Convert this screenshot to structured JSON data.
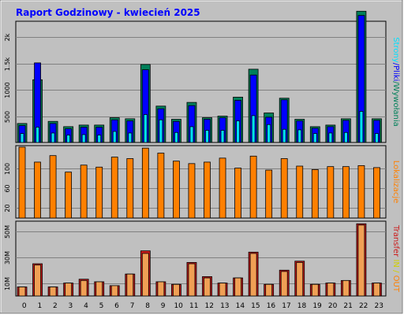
{
  "title": "Raport Godzinowy -  kwiecień 2025",
  "colors": {
    "background": "#c0c0c0",
    "title": "#0000ff",
    "hits": "#00805a",
    "files": "#0000ff",
    "pages": "#00e0ff",
    "visits": "#ff8000",
    "kbytes_out": "#cc1a1a",
    "kbytes_in": "#f0a055",
    "legend_out": "#d0d000"
  },
  "chart_data": [
    {
      "type": "bar",
      "panel": "hits-files-pages",
      "categories": [
        "0",
        "1",
        "2",
        "3",
        "4",
        "5",
        "6",
        "7",
        "8",
        "9",
        "10",
        "11",
        "12",
        "13",
        "14",
        "15",
        "16",
        "17",
        "18",
        "19",
        "20",
        "21",
        "22",
        "23"
      ],
      "ylim": [
        0,
        2300
      ],
      "yticks": [
        500,
        1000,
        1500,
        2000
      ],
      "ytick_labels": [
        "500",
        "1000",
        "1.5k",
        "2k"
      ],
      "right_label": [
        "Strony",
        "/",
        "Pliki",
        "/",
        "Wywołania"
      ],
      "series": [
        {
          "name": "Wywołania",
          "values": [
            360,
            1190,
            400,
            300,
            330,
            330,
            470,
            450,
            1480,
            690,
            440,
            760,
            470,
            500,
            860,
            1390,
            560,
            840,
            440,
            300,
            330,
            450,
            2490,
            450
          ]
        },
        {
          "name": "Pliki",
          "values": [
            320,
            1510,
            360,
            260,
            290,
            290,
            430,
            410,
            1380,
            640,
            400,
            700,
            440,
            470,
            800,
            1280,
            480,
            810,
            410,
            270,
            300,
            420,
            2410,
            420
          ]
        },
        {
          "name": "Strony",
          "values": [
            170,
            290,
            180,
            140,
            150,
            140,
            210,
            180,
            530,
            430,
            190,
            300,
            230,
            230,
            410,
            510,
            340,
            250,
            240,
            170,
            180,
            190,
            590,
            170
          ]
        }
      ]
    },
    {
      "type": "bar",
      "panel": "visits",
      "categories": [
        "0",
        "1",
        "2",
        "3",
        "4",
        "5",
        "6",
        "7",
        "8",
        "9",
        "10",
        "11",
        "12",
        "13",
        "14",
        "15",
        "16",
        "17",
        "18",
        "19",
        "20",
        "21",
        "22",
        "23"
      ],
      "ylim": [
        0,
        145
      ],
      "yticks": [
        20,
        60,
        100
      ],
      "ytick_labels": [
        "20",
        "60",
        "100"
      ],
      "right_label": [
        "Lokalizacje"
      ],
      "series": [
        {
          "name": "Lokalizacje",
          "values": [
            142,
            112,
            125,
            92,
            106,
            102,
            122,
            119,
            140,
            130,
            114,
            109,
            112,
            120,
            100,
            124,
            96,
            119,
            104,
            97,
            103,
            103,
            105,
            101
          ]
        }
      ]
    },
    {
      "type": "bar",
      "panel": "traffic",
      "categories": [
        "0",
        "1",
        "2",
        "3",
        "4",
        "5",
        "6",
        "7",
        "8",
        "9",
        "10",
        "11",
        "12",
        "13",
        "14",
        "15",
        "16",
        "17",
        "18",
        "19",
        "20",
        "21",
        "22",
        "23"
      ],
      "ylim": [
        0,
        58
      ],
      "yticks": [
        10,
        30,
        50
      ],
      "ytick_labels": [
        "10M",
        "30M",
        "50M"
      ],
      "right_label": [
        "Transfer",
        " IN",
        " / ",
        "OUT"
      ],
      "series": [
        {
          "name": "Transfer OUT",
          "values": [
            7,
            25,
            7,
            10,
            13,
            11,
            8,
            17,
            35,
            11,
            9,
            26,
            15,
            10,
            14,
            34,
            9,
            20,
            27,
            9,
            10,
            12,
            56,
            10
          ]
        },
        {
          "name": "Transfer IN",
          "values": [
            7,
            24,
            7,
            10,
            12,
            11,
            8,
            17,
            33,
            11,
            9,
            25,
            14,
            10,
            14,
            33,
            9,
            19,
            26,
            9,
            10,
            12,
            55,
            10
          ]
        }
      ]
    }
  ]
}
